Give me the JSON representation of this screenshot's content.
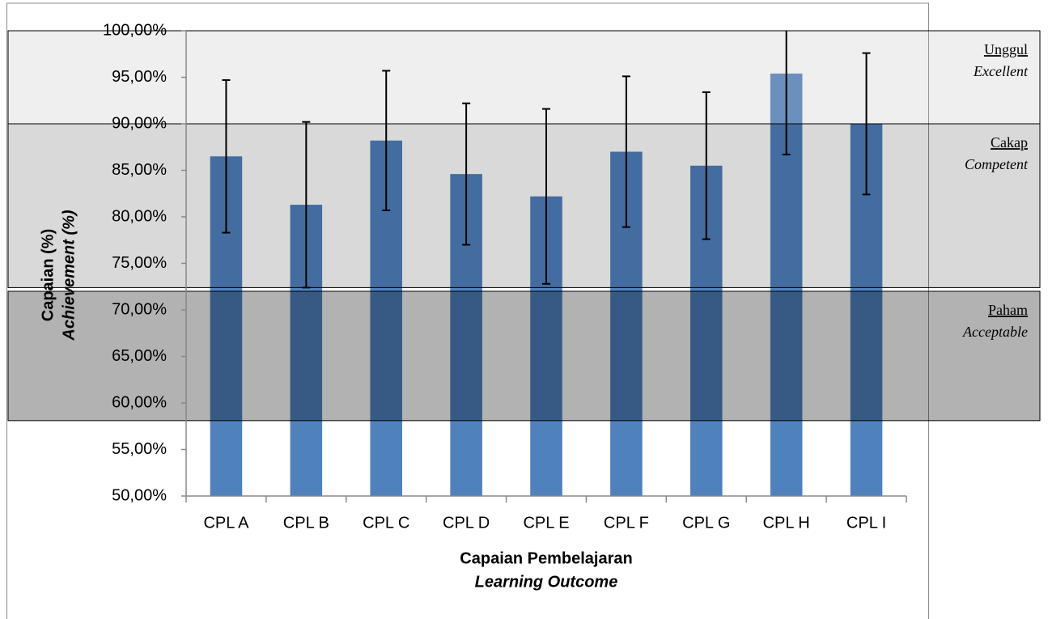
{
  "chart_data": {
    "type": "bar",
    "categories": [
      "CPL A",
      "CPL B",
      "CPL C",
      "CPL D",
      "CPL E",
      "CPL F",
      "CPL G",
      "CPL H",
      "CPL I"
    ],
    "values": [
      86.5,
      81.3,
      88.2,
      84.6,
      82.2,
      87.0,
      85.5,
      95.4,
      90.0
    ],
    "errors": [
      8.2,
      8.9,
      7.5,
      7.6,
      9.4,
      8.1,
      7.9,
      8.7,
      7.6
    ],
    "color": "#4f81bd",
    "ylim": [
      50,
      100
    ],
    "yticks": [
      {
        "value": 50,
        "label": "50,00%"
      },
      {
        "value": 55,
        "label": "55,00%"
      },
      {
        "value": 60,
        "label": "60,00%"
      },
      {
        "value": 65,
        "label": "65,00%"
      },
      {
        "value": 70,
        "label": "70,00%"
      },
      {
        "value": 75,
        "label": "75,00%"
      },
      {
        "value": 80,
        "label": "80,00%"
      },
      {
        "value": 85,
        "label": "85,00%"
      },
      {
        "value": 90,
        "label": "90,00%"
      },
      {
        "value": 95,
        "label": "95,00%"
      },
      {
        "value": 100,
        "label": "100,00%"
      }
    ],
    "y_label": "Capaian (%)",
    "y_sublabel": "Achievement (%)",
    "x_label": "Capaian Pembelajaran",
    "x_sublabel": "Learning Outcome",
    "bands": [
      {
        "label": "Unggul",
        "sublabel": "Excellent",
        "range": [
          90,
          100
        ],
        "color": "#bfbfbf",
        "opacity": 0.25
      },
      {
        "label": "Cakap",
        "sublabel": "Competent",
        "range": [
          72.4,
          90
        ],
        "color": "#000000",
        "opacity": 0.15
      },
      {
        "label": "Paham",
        "sublabel": "Acceptable",
        "range": [
          58.1,
          72
        ],
        "color": "#000000",
        "opacity": 0.3
      }
    ]
  }
}
